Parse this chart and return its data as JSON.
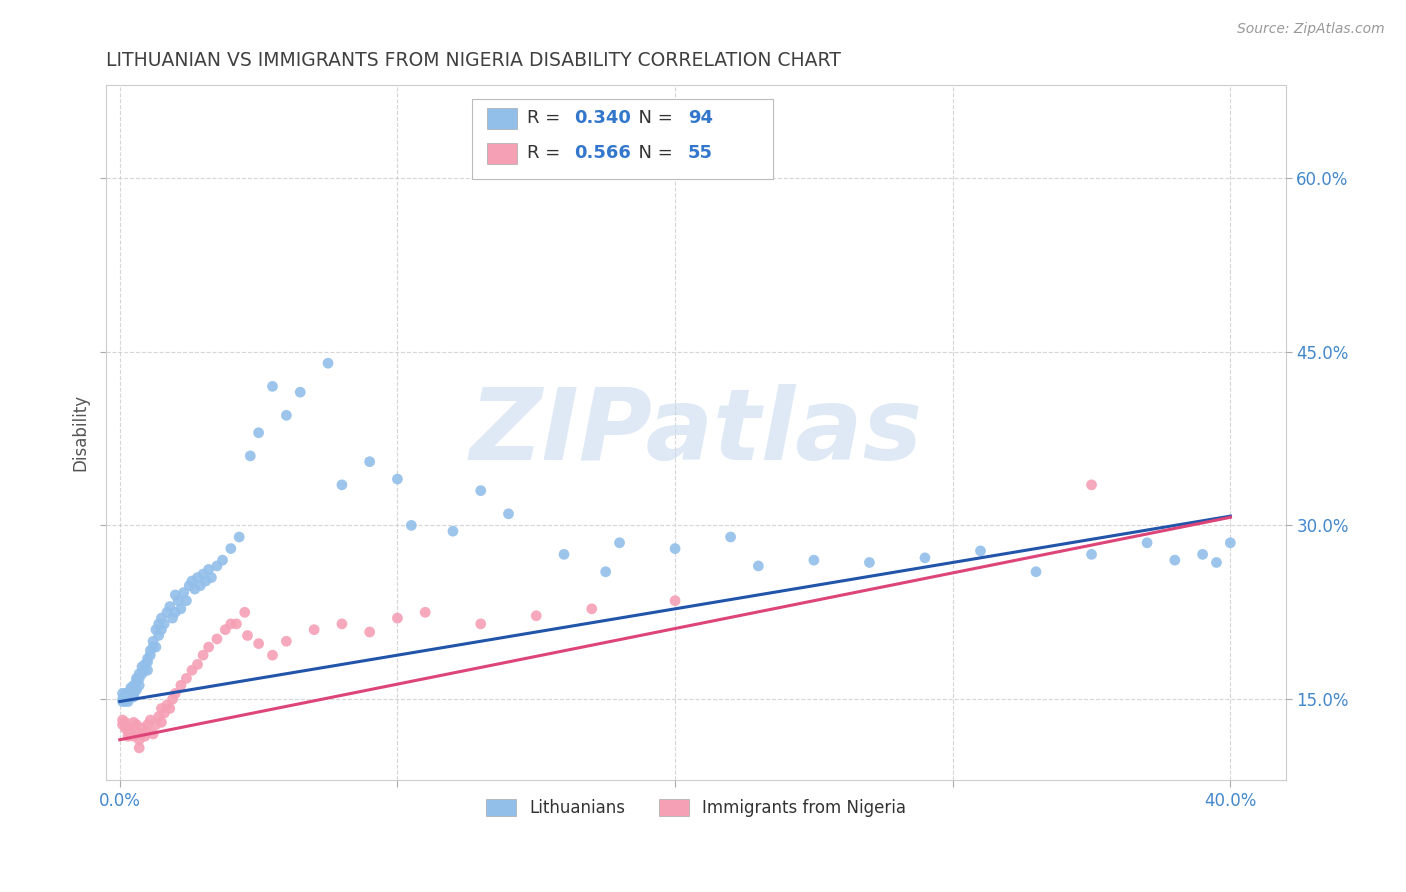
{
  "title": "LITHUANIAN VS IMMIGRANTS FROM NIGERIA DISABILITY CORRELATION CHART",
  "source_text": "Source: ZipAtlas.com",
  "ylabel": "Disability",
  "xlim": [
    -0.005,
    0.42
  ],
  "ylim": [
    0.08,
    0.68
  ],
  "xticks": [
    0.0,
    0.4
  ],
  "yticks": [
    0.15,
    0.3,
    0.45,
    0.6
  ],
  "xticklabels": [
    "0.0%",
    "40.0%"
  ],
  "yticklabels": [
    "15.0%",
    "30.0%",
    "45.0%",
    "60.0%"
  ],
  "watermark": "ZIPatlas",
  "series": [
    {
      "name": "Lithuanians",
      "color": "#92bfea",
      "R": 0.34,
      "N": 94,
      "intercept": 0.148,
      "slope": 0.4,
      "x": [
        0.001,
        0.001,
        0.001,
        0.002,
        0.002,
        0.002,
        0.002,
        0.003,
        0.003,
        0.003,
        0.003,
        0.004,
        0.004,
        0.004,
        0.005,
        0.005,
        0.005,
        0.005,
        0.006,
        0.006,
        0.006,
        0.007,
        0.007,
        0.007,
        0.008,
        0.008,
        0.009,
        0.009,
        0.01,
        0.01,
        0.01,
        0.011,
        0.011,
        0.012,
        0.012,
        0.013,
        0.013,
        0.014,
        0.014,
        0.015,
        0.015,
        0.016,
        0.017,
        0.018,
        0.019,
        0.02,
        0.02,
        0.021,
        0.022,
        0.023,
        0.024,
        0.025,
        0.026,
        0.027,
        0.028,
        0.029,
        0.03,
        0.031,
        0.032,
        0.033,
        0.035,
        0.037,
        0.04,
        0.043,
        0.047,
        0.05,
        0.055,
        0.06,
        0.065,
        0.075,
        0.08,
        0.09,
        0.1,
        0.12,
        0.14,
        0.16,
        0.18,
        0.2,
        0.22,
        0.25,
        0.27,
        0.29,
        0.31,
        0.33,
        0.35,
        0.37,
        0.38,
        0.39,
        0.395,
        0.4,
        0.105,
        0.13,
        0.175,
        0.23
      ],
      "y": [
        0.155,
        0.148,
        0.15,
        0.152,
        0.15,
        0.155,
        0.148,
        0.152,
        0.155,
        0.148,
        0.153,
        0.155,
        0.16,
        0.158,
        0.155,
        0.162,
        0.158,
        0.152,
        0.168,
        0.165,
        0.158,
        0.172,
        0.168,
        0.162,
        0.178,
        0.172,
        0.18,
        0.175,
        0.185,
        0.182,
        0.175,
        0.188,
        0.192,
        0.195,
        0.2,
        0.195,
        0.21,
        0.205,
        0.215,
        0.21,
        0.22,
        0.215,
        0.225,
        0.23,
        0.22,
        0.24,
        0.225,
        0.235,
        0.228,
        0.242,
        0.235,
        0.248,
        0.252,
        0.245,
        0.255,
        0.248,
        0.258,
        0.252,
        0.262,
        0.255,
        0.265,
        0.27,
        0.28,
        0.29,
        0.36,
        0.38,
        0.42,
        0.395,
        0.415,
        0.44,
        0.335,
        0.355,
        0.34,
        0.295,
        0.31,
        0.275,
        0.285,
        0.28,
        0.29,
        0.27,
        0.268,
        0.272,
        0.278,
        0.26,
        0.275,
        0.285,
        0.27,
        0.275,
        0.268,
        0.285,
        0.3,
        0.33,
        0.26,
        0.265
      ],
      "line_color": "#2255aa"
    },
    {
      "name": "Immigrants from Nigeria",
      "color": "#f5a0b5",
      "R": 0.566,
      "N": 55,
      "intercept": 0.115,
      "slope": 0.48,
      "x": [
        0.001,
        0.001,
        0.002,
        0.002,
        0.003,
        0.003,
        0.004,
        0.004,
        0.005,
        0.005,
        0.006,
        0.006,
        0.007,
        0.008,
        0.008,
        0.009,
        0.01,
        0.01,
        0.011,
        0.012,
        0.013,
        0.014,
        0.015,
        0.016,
        0.017,
        0.018,
        0.019,
        0.02,
        0.022,
        0.024,
        0.026,
        0.028,
        0.03,
        0.032,
        0.035,
        0.038,
        0.042,
        0.046,
        0.05,
        0.055,
        0.06,
        0.07,
        0.08,
        0.09,
        0.1,
        0.11,
        0.13,
        0.15,
        0.17,
        0.2,
        0.04,
        0.045,
        0.35,
        0.015,
        0.007
      ],
      "y": [
        0.132,
        0.128,
        0.125,
        0.13,
        0.122,
        0.118,
        0.125,
        0.12,
        0.118,
        0.13,
        0.122,
        0.128,
        0.115,
        0.125,
        0.12,
        0.118,
        0.128,
        0.122,
        0.132,
        0.12,
        0.128,
        0.135,
        0.13,
        0.138,
        0.145,
        0.142,
        0.15,
        0.155,
        0.162,
        0.168,
        0.175,
        0.18,
        0.188,
        0.195,
        0.202,
        0.21,
        0.215,
        0.205,
        0.198,
        0.188,
        0.2,
        0.21,
        0.215,
        0.208,
        0.22,
        0.225,
        0.215,
        0.222,
        0.228,
        0.235,
        0.215,
        0.225,
        0.335,
        0.142,
        0.108
      ],
      "line_color": "#dd4477"
    }
  ],
  "background_color": "#ffffff",
  "grid_color": "#cccccc",
  "title_color": "#404040",
  "tick_color": "#4488cc",
  "right_ytick_color": "#4488cc"
}
